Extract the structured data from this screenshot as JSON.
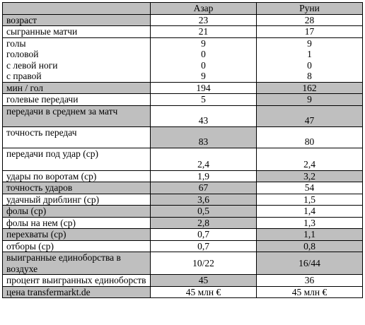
{
  "headers": [
    "",
    "Азар",
    "Руни"
  ],
  "rows": [
    {
      "label": [
        "возраст"
      ],
      "a": "23",
      "b": "28",
      "shade_label": true,
      "shade_a": false,
      "shade_b": false,
      "valign": "top"
    },
    {
      "label": [
        "сыгранные матчи"
      ],
      "a": "21",
      "b": "17",
      "shade_label": false,
      "shade_a": false,
      "shade_b": false,
      "valign": "top"
    },
    {
      "label": [
        "голы",
        "головой",
        "с левой ноги",
        "с правой"
      ],
      "a": [
        "9",
        "0",
        "0",
        "9"
      ],
      "b": [
        "9",
        "1",
        "0",
        "8"
      ],
      "shade_label": false,
      "shade_a": false,
      "shade_b": false,
      "valign": "top"
    },
    {
      "label": [
        "мин / гол"
      ],
      "a": "194",
      "b": "162",
      "shade_label": true,
      "shade_a": false,
      "shade_b": true,
      "valign": "top"
    },
    {
      "label": [
        "голевые передачи"
      ],
      "a": "5",
      "b": "9",
      "shade_label": false,
      "shade_a": false,
      "shade_b": true,
      "valign": "top"
    },
    {
      "label": [
        "передачи в среднем за матч"
      ],
      "a": "43",
      "b": "47",
      "shade_label": true,
      "shade_a": false,
      "shade_b": true,
      "valign": "bot",
      "tall": 30
    },
    {
      "label": [
        "точность передач"
      ],
      "a": "83",
      "b": "80",
      "shade_label": false,
      "shade_a": true,
      "shade_b": false,
      "valign": "bot",
      "tall": 30
    },
    {
      "label": [
        "передачи под удар (ср)"
      ],
      "a": "2,4",
      "b": "2,4",
      "shade_label": false,
      "shade_a": false,
      "shade_b": false,
      "valign": "bot",
      "tall": 32
    },
    {
      "label": [
        "удары по воротам (ср)"
      ],
      "a": "1,9",
      "b": "3,2",
      "shade_label": false,
      "shade_a": false,
      "shade_b": true,
      "valign": "top"
    },
    {
      "label": [
        "точность ударов"
      ],
      "a": "67",
      "b": "54",
      "shade_label": true,
      "shade_a": true,
      "shade_b": false,
      "valign": "top"
    },
    {
      "label": [
        "удачный дриблинг (ср)"
      ],
      "a": "3,6",
      "b": "1,5",
      "shade_label": false,
      "shade_a": true,
      "shade_b": false,
      "valign": "top"
    },
    {
      "label": [
        "фолы (ср)"
      ],
      "a": "0,5",
      "b": "1,4",
      "shade_label": true,
      "shade_a": true,
      "shade_b": false,
      "valign": "top"
    },
    {
      "label": [
        "фолы на нем (ср)"
      ],
      "a": "2,8",
      "b": "1,3",
      "shade_label": false,
      "shade_a": true,
      "shade_b": false,
      "valign": "top"
    },
    {
      "label": [
        "перехваты (ср)"
      ],
      "a": "0,7",
      "b": "1,1",
      "shade_label": true,
      "shade_a": false,
      "shade_b": true,
      "valign": "top"
    },
    {
      "label": [
        "отборы (ср)"
      ],
      "a": "0,7",
      "b": "0,8",
      "shade_label": false,
      "shade_a": false,
      "shade_b": true,
      "valign": "top"
    },
    {
      "label": [
        "выигранные единоборства в воздухе"
      ],
      "a": "10/22",
      "b": "16/44",
      "shade_label": true,
      "shade_a": false,
      "shade_b": true,
      "valign": "mid",
      "wrap": true
    },
    {
      "label": [
        "процент выигранных единоборств"
      ],
      "a": "45",
      "b": "36",
      "shade_label": false,
      "shade_a": true,
      "shade_b": false,
      "valign": "mid",
      "wrap": true
    },
    {
      "label": [
        "цена  transfermarkt.de"
      ],
      "a": "45 млн  €",
      "b": "45 млн  €",
      "shade_label": true,
      "shade_a": false,
      "shade_b": false,
      "valign": "top"
    }
  ],
  "colors": {
    "shade": "#bfbfbf",
    "border": "#000000"
  }
}
